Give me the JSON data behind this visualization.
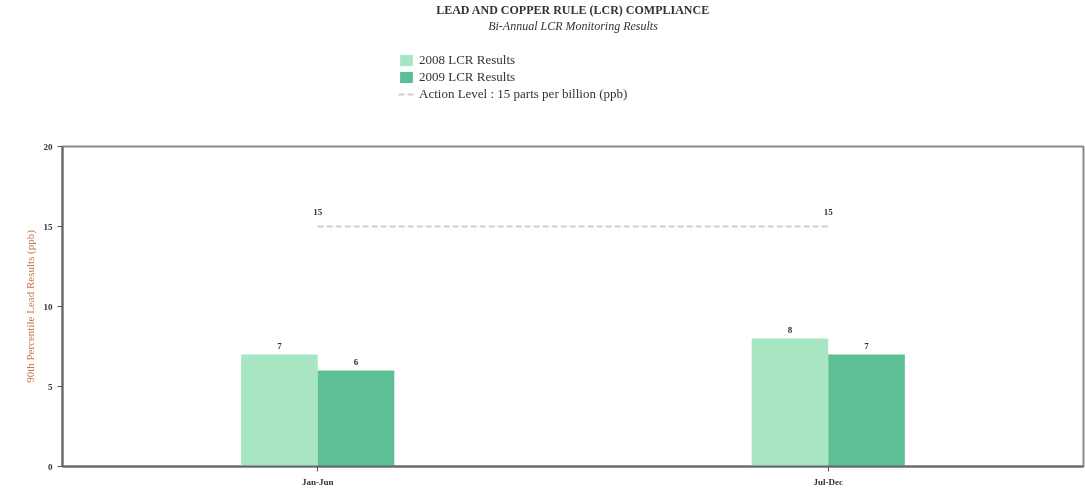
{
  "chart_data": {
    "type": "bar",
    "title": "LEAD AND COPPER RULE (LCR) COMPLIANCE",
    "subtitle": "Bi-Annual LCR Monitoring Results",
    "ylabel": "90th Percentile Lead Results (ppb)",
    "categories": [
      "Jan-Jun",
      "Jul-Dec"
    ],
    "series": [
      {
        "name": "2008 LCR Results",
        "color": "#a8e6c3",
        "values": [
          7,
          8
        ]
      },
      {
        "name": "2009 LCR Results",
        "color": "#5cbf95",
        "values": [
          6,
          7
        ]
      },
      {
        "name": "Action Level : 15 parts per billion (ppb)",
        "type": "line",
        "color": "#cfcfcf",
        "line_style": "dashed",
        "values": [
          15,
          15
        ]
      }
    ],
    "ylim": [
      0,
      20
    ],
    "yticks": [
      0,
      5,
      10,
      15,
      20
    ],
    "data_labels": true,
    "legend": "top"
  }
}
